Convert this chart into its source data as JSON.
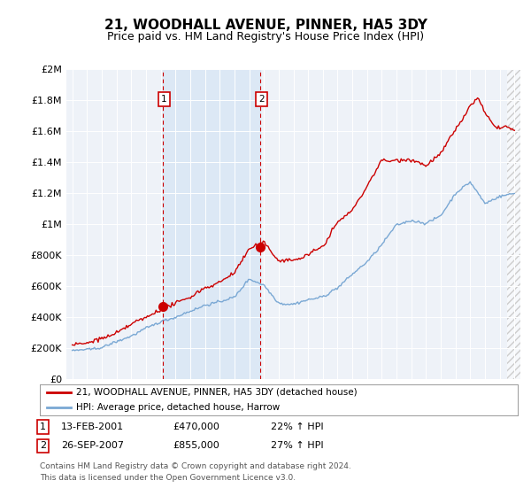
{
  "title": "21, WOODHALL AVENUE, PINNER, HA5 3DY",
  "subtitle": "Price paid vs. HM Land Registry's House Price Index (HPI)",
  "ytick_labels": [
    "£0",
    "£200K",
    "£400K",
    "£600K",
    "£800K",
    "£1M",
    "£1.2M",
    "£1.4M",
    "£1.6M",
    "£1.8M",
    "£2M"
  ],
  "yticks": [
    0,
    200000,
    400000,
    600000,
    800000,
    1000000,
    1200000,
    1400000,
    1600000,
    1800000,
    2000000
  ],
  "ylim": [
    0,
    2000000
  ],
  "xlim_min": 1994.6,
  "xlim_max": 2025.4,
  "legend_entries": [
    "21, WOODHALL AVENUE, PINNER, HA5 3DY (detached house)",
    "HPI: Average price, detached house, Harrow"
  ],
  "legend_colors": [
    "#cc0000",
    "#7aa8d4"
  ],
  "transaction1_x": 2001.12,
  "transaction1_y": 470000,
  "transaction2_x": 2007.73,
  "transaction2_y": 855000,
  "shade_color": "#dce8f5",
  "hatch_start": 2024.5,
  "vline_color": "#cc0000",
  "plot_bg_color": "#eef2f8",
  "grid_color": "#ffffff",
  "background_color": "#ffffff",
  "title_fontsize": 11,
  "subtitle_fontsize": 9,
  "footnote3": "Contains HM Land Registry data © Crown copyright and database right 2024.",
  "footnote4": "This data is licensed under the Open Government Licence v3.0."
}
